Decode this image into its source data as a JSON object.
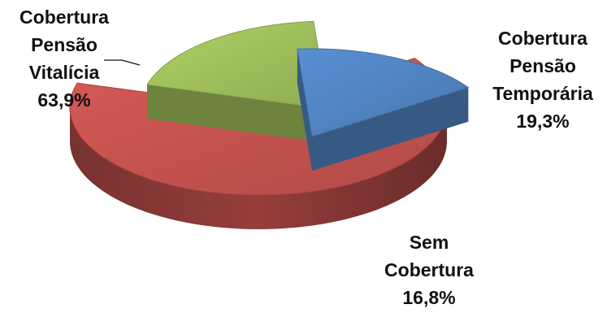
{
  "chart_data": {
    "type": "pie",
    "style": "3d-exploded",
    "slices": [
      {
        "label_lines": [
          "Cobertura",
          "Pensão",
          "Vitalícia"
        ],
        "value_label": "63,9%",
        "value": 63.9,
        "color": "#c0504d"
      },
      {
        "label_lines": [
          "Cobertura",
          "Pensão",
          "Temporária"
        ],
        "value_label": "19,3%",
        "value": 19.3,
        "color": "#9bbb59"
      },
      {
        "label_lines": [
          "Sem",
          "Cobertura"
        ],
        "value_label": "16,8%",
        "value": 16.8,
        "color": "#4f81bd"
      }
    ]
  }
}
